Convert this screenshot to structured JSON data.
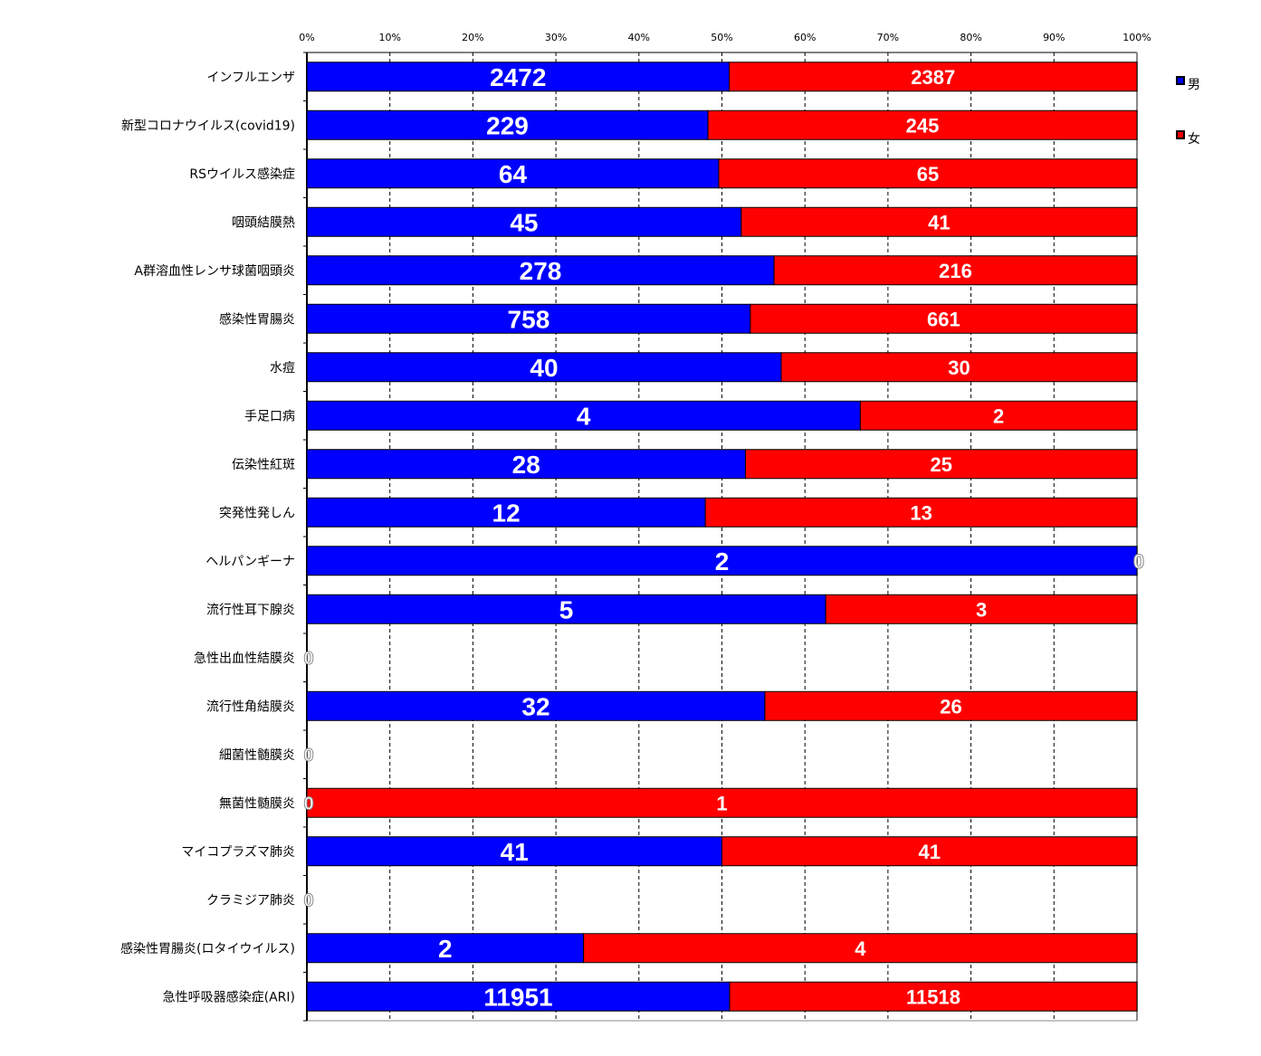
{
  "chart_data": {
    "type": "bar",
    "orientation": "horizontal",
    "stacked": "percent",
    "title": "",
    "xlabel": "",
    "ylabel": "",
    "xlim": [
      0,
      100
    ],
    "x_ticks": [
      "0%",
      "10%",
      "20%",
      "30%",
      "40%",
      "50%",
      "60%",
      "70%",
      "80%",
      "90%",
      "100%"
    ],
    "grid": "vertical dashed",
    "legend_placement": "right",
    "categories": [
      "インフルエンザ",
      "新型コロナウイルス(covid19)",
      "RSウイルス感染症",
      "咽頭結膜熱",
      "A群溶血性レンサ球菌咽頭炎",
      "感染性胃腸炎",
      "水痘",
      "手足口病",
      "伝染性紅斑",
      "突発性発しん",
      "ヘルパンギーナ",
      "流行性耳下腺炎",
      "急性出血性結膜炎",
      "流行性角結膜炎",
      "細菌性髄膜炎",
      "無菌性髄膜炎",
      "マイコプラズマ肺炎",
      "クラミジア肺炎",
      "感染性胃腸炎(ロタイウイルス)",
      "急性呼吸器感染症(ARI)"
    ],
    "series": [
      {
        "name": "男",
        "color": "#0000FF",
        "values": [
          2472,
          229,
          64,
          45,
          278,
          758,
          40,
          4,
          28,
          12,
          2,
          5,
          0,
          32,
          0,
          0,
          41,
          0,
          2,
          11951
        ]
      },
      {
        "name": "女",
        "color": "#FF0000",
        "values": [
          2387,
          245,
          65,
          41,
          216,
          661,
          30,
          2,
          25,
          13,
          0,
          3,
          0,
          26,
          0,
          1,
          41,
          0,
          4,
          11518
        ]
      }
    ]
  }
}
